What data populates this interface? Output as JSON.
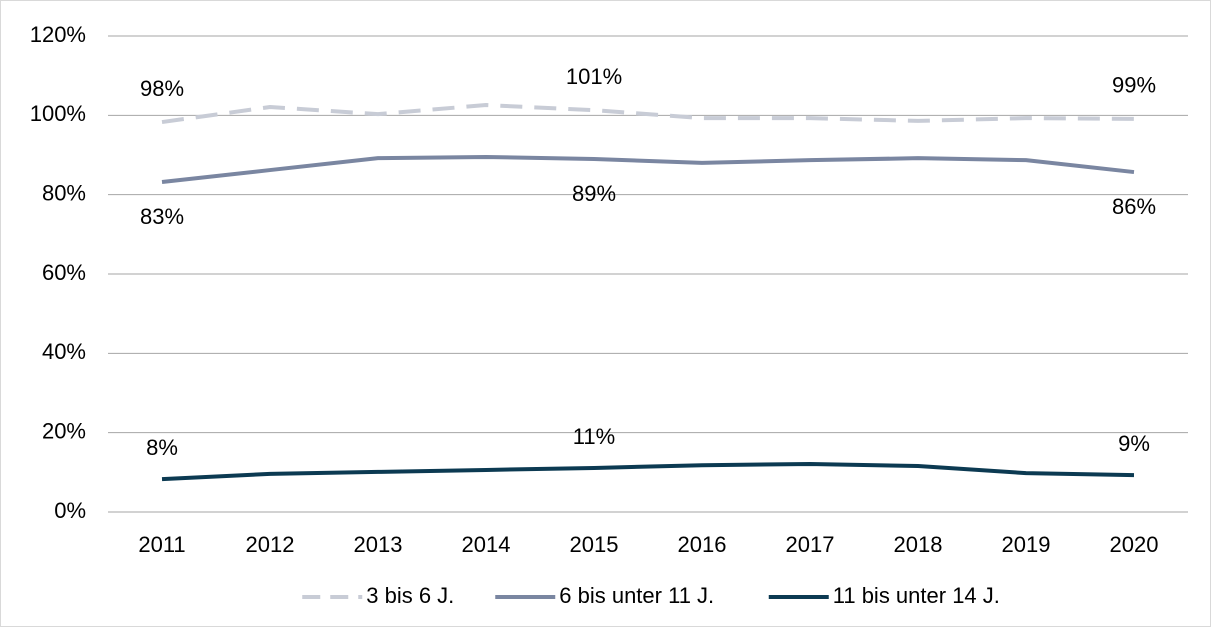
{
  "chart_data": {
    "type": "line",
    "categories": [
      "2011",
      "2012",
      "2013",
      "2014",
      "2015",
      "2016",
      "2017",
      "2018",
      "2019",
      "2020"
    ],
    "series": [
      {
        "name": "3 bis 6 J.",
        "color": "#c8ccd6",
        "dashed": true,
        "values": [
          98.3,
          102.1,
          100.3,
          102.6,
          101.3,
          99.3,
          99.3,
          98.6,
          99.3,
          99.1
        ],
        "value_labels": [
          "98%",
          null,
          null,
          null,
          "101%",
          null,
          null,
          null,
          null,
          "99%"
        ]
      },
      {
        "name": "6 bis unter 11 J.",
        "color": "#7a86a1",
        "dashed": false,
        "values": [
          83.2,
          86.2,
          89.2,
          89.5,
          89.0,
          88.0,
          88.7,
          89.2,
          88.7,
          85.7
        ],
        "value_labels": [
          "83%",
          null,
          null,
          null,
          "89%",
          null,
          null,
          null,
          null,
          "86%"
        ]
      },
      {
        "name": "11 bis unter 14 J.",
        "color": "#0c3a52",
        "dashed": false,
        "values": [
          8.3,
          9.6,
          10.1,
          10.6,
          11.1,
          11.8,
          12.1,
          11.6,
          9.8,
          9.3
        ],
        "value_labels": [
          "8%",
          null,
          null,
          null,
          "11%",
          null,
          null,
          null,
          null,
          "9%"
        ]
      }
    ],
    "ylim": [
      0,
      120
    ],
    "yticks": [
      {
        "value": 0,
        "label": "0%"
      },
      {
        "value": 20,
        "label": "20%"
      },
      {
        "value": 40,
        "label": "40%"
      },
      {
        "value": 60,
        "label": "60%"
      },
      {
        "value": 80,
        "label": "80%"
      },
      {
        "value": 100,
        "label": "100%"
      },
      {
        "value": 120,
        "label": "120%"
      }
    ],
    "grid": true,
    "legend": "bottom"
  }
}
